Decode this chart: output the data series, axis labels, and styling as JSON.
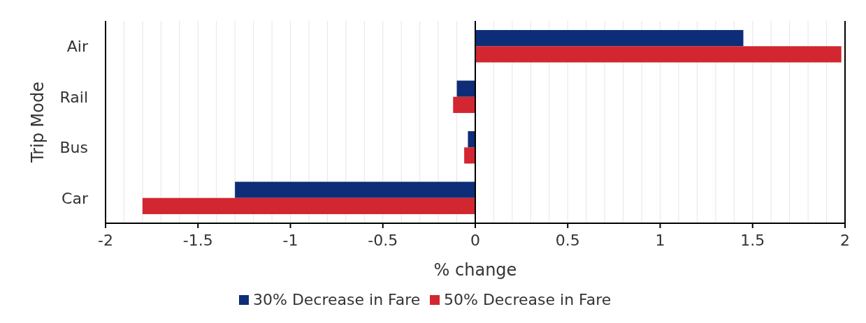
{
  "chart_data": {
    "type": "bar",
    "orientation": "horizontal",
    "xlabel": "% change",
    "ylabel": "Trip Mode",
    "categories": [
      "Air",
      "Rail",
      "Bus",
      "Car"
    ],
    "series": [
      {
        "name": "30% Decrease in Fare",
        "color": "#0e2d78",
        "values": [
          1.45,
          -0.1,
          -0.04,
          -1.3
        ]
      },
      {
        "name": "50% Decrease in Fare",
        "color": "#d22630",
        "values": [
          1.98,
          -0.12,
          -0.06,
          -1.8
        ]
      }
    ],
    "xlim": [
      -2,
      2
    ],
    "xticks": [
      -2,
      {
        "value": -1.9,
        "label": null
      },
      {
        "value": -1.8,
        "label": null
      },
      {
        "value": -1.7,
        "label": null
      },
      {
        "value": -1.6,
        "label": null
      },
      -1.5,
      {
        "value": -1.4,
        "label": null
      },
      {
        "value": -1.3,
        "label": null
      },
      {
        "value": -1.2,
        "label": null
      },
      {
        "value": -1.1,
        "label": null
      },
      -1,
      {
        "value": -0.9,
        "label": null
      },
      {
        "value": -0.8,
        "label": null
      },
      {
        "value": -0.7,
        "label": null
      },
      {
        "value": -0.6,
        "label": null
      },
      -0.5,
      {
        "value": -0.4,
        "label": null
      },
      {
        "value": -0.3,
        "label": null
      },
      {
        "value": -0.2,
        "label": null
      },
      {
        "value": -0.1,
        "label": null
      },
      0,
      {
        "value": 0.1,
        "label": null
      },
      {
        "value": 0.2,
        "label": null
      },
      {
        "value": 0.3,
        "label": null
      },
      {
        "value": 0.4,
        "label": null
      },
      0.5,
      {
        "value": 0.6,
        "label": null
      },
      {
        "value": 0.7,
        "label": null
      },
      {
        "value": 0.8,
        "label": null
      },
      {
        "value": 0.9,
        "label": null
      },
      1,
      {
        "value": 1.1,
        "label": null
      },
      {
        "value": 1.2,
        "label": null
      },
      {
        "value": 1.3,
        "label": null
      },
      {
        "value": 1.4,
        "label": null
      },
      1.5,
      {
        "value": 1.6,
        "label": null
      },
      {
        "value": 1.7,
        "label": null
      },
      {
        "value": 1.8,
        "label": null
      },
      {
        "value": 1.9,
        "label": null
      },
      2
    ],
    "grid": "x",
    "legend": "bottom"
  }
}
